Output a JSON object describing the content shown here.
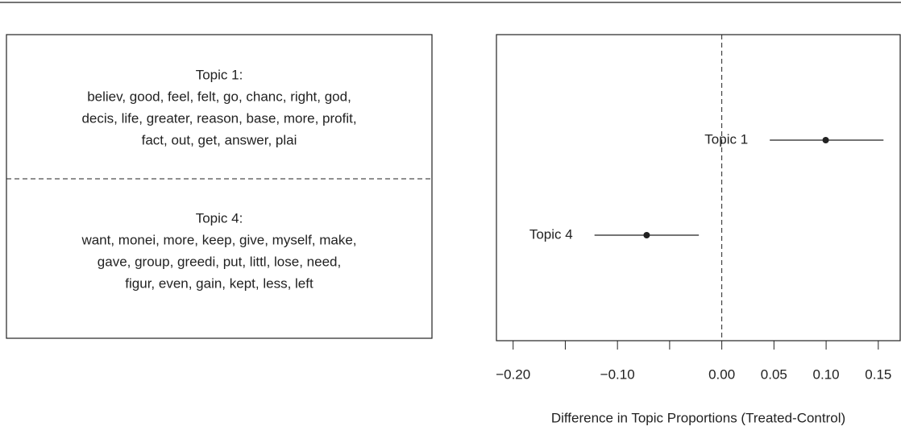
{
  "topics": [
    {
      "title": "Topic 1:",
      "lines": [
        "believ, good, feel, felt, go, chanc, right, god,",
        "decis, life, greater, reason, base, more, profit,",
        "fact, out, get, answer, plai"
      ]
    },
    {
      "title": "Topic 4:",
      "lines": [
        "want, monei, more, keep, give, myself, make,",
        "gave, group, greedi, put, littl, lose, need,",
        "figur, even, gain, kept, less, left"
      ]
    }
  ],
  "chart_data": {
    "type": "dot_whisker",
    "xlabel": "Difference in Topic Proportions (Treated-Control)",
    "categories": [
      "Topic 1",
      "Topic 4"
    ],
    "series": [
      {
        "color": "#222222",
        "values": [
          0.0996,
          -0.072
        ],
        "lower": [
          0.046,
          -0.122
        ],
        "upper": [
          0.155,
          -0.022
        ]
      }
    ],
    "xlim": [
      -0.216,
      0.171
    ],
    "xticks": [
      {
        "value": -0.2,
        "label": "−0.20"
      },
      {
        "value": -0.1,
        "label": "−0.10"
      },
      {
        "value": 0,
        "label": "0.00"
      },
      {
        "value": 0.05,
        "label": "0.05"
      },
      {
        "value": 0.1,
        "label": "0.10"
      },
      {
        "value": 0.15,
        "label": "0.15"
      }
    ],
    "xminor_ticks": [
      -0.15,
      -0.05
    ],
    "vline": 0
  }
}
